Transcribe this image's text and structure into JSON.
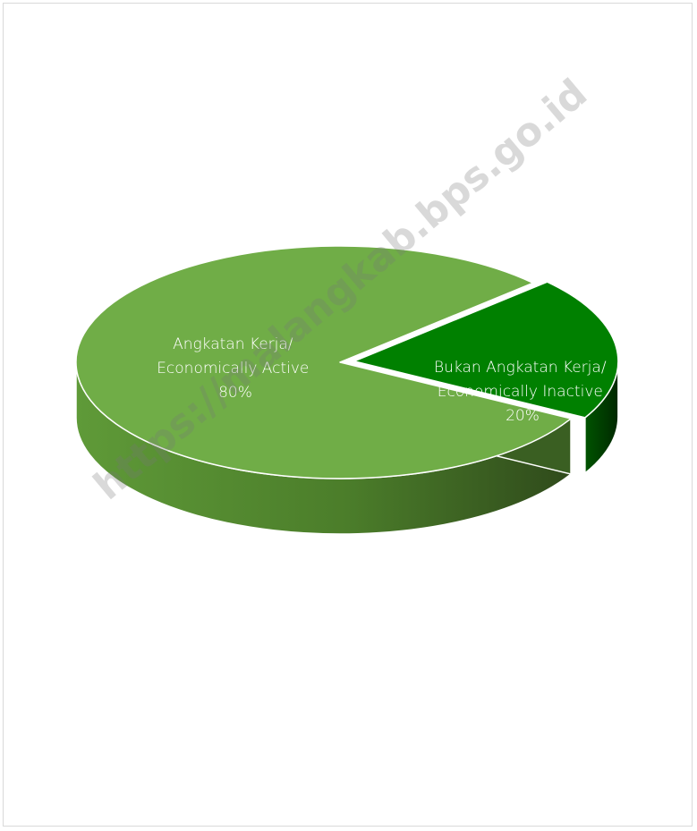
{
  "chart_data": {
    "type": "pie",
    "style": "3d-exploded",
    "slices": [
      {
        "label_lines": [
          "Angkatan Kerja/",
          "Economically Active",
          "80%"
        ],
        "value": 80,
        "color_top": "#70ad47",
        "color_side_light": "#5f9a38",
        "color_side_dark": "#2f4a1b"
      },
      {
        "label_lines": [
          "Bukan Angkatan Kerja/",
          "Economically Inactive",
          "20%"
        ],
        "value": 20,
        "color_top": "#008000",
        "color_side_light": "#006400",
        "color_side_dark": "#003300"
      }
    ],
    "legend": "none",
    "watermark": "https://malangkab.bps.go.id"
  }
}
